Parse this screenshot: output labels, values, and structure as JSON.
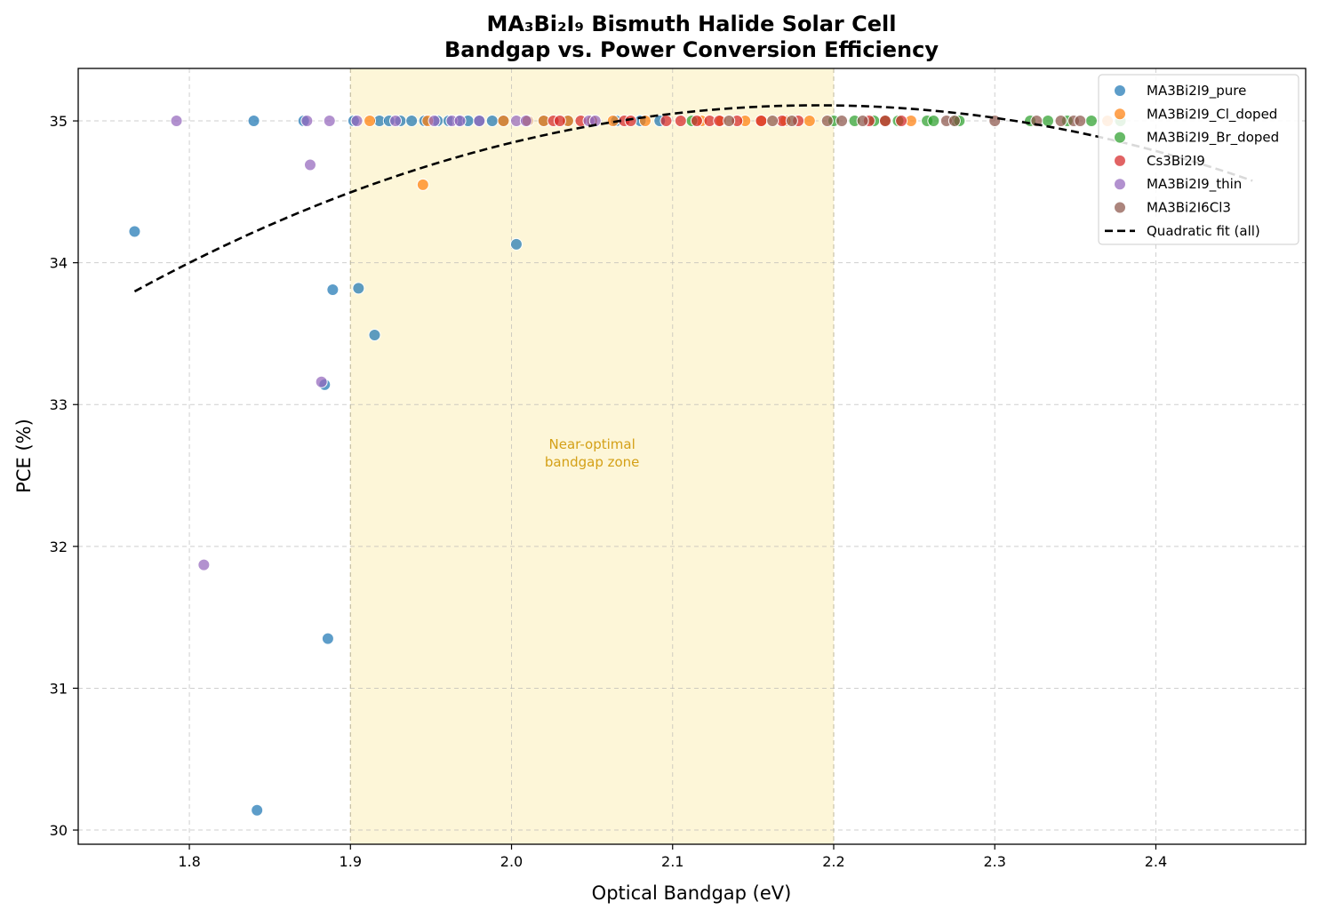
{
  "chart_data": {
    "type": "scatter",
    "title": "MA₃Bi₂I₉ Bismuth Halide Solar Cell",
    "subtitle": "Bandgap vs. Power Conversion Efficiency",
    "xlabel": "Optical Bandgap (eV)",
    "ylabel": "PCE (%)",
    "xlim": [
      1.731,
      2.493
    ],
    "ylim": [
      29.9,
      35.37
    ],
    "xticks": [
      1.8,
      1.9,
      2.0,
      2.1,
      2.2,
      2.3,
      2.4
    ],
    "xtick_labels": [
      "1.8",
      "1.9",
      "2.0",
      "2.1",
      "2.2",
      "2.3",
      "2.4"
    ],
    "yticks": [
      30,
      31,
      32,
      33,
      34,
      35
    ],
    "ytick_labels": [
      "30",
      "31",
      "32",
      "33",
      "34",
      "35"
    ],
    "grid": true,
    "legend_position": "top-right",
    "shaded_region": {
      "x_range": [
        1.9,
        2.2
      ],
      "color": "#fdf6d8",
      "label": "Near-optimal\nbandgap zone",
      "label_lines": [
        "Near-optimal",
        "bandgap zone"
      ],
      "label_at": [
        2.05,
        32.6
      ],
      "label_color": "#d4a017"
    },
    "series": [
      {
        "name": "MA3Bi2I9_pure",
        "color": "#1f77b4",
        "points": [
          [
            1.766,
            34.22
          ],
          [
            1.84,
            35.0
          ],
          [
            1.842,
            30.14
          ],
          [
            1.871,
            35.0
          ],
          [
            1.884,
            33.14
          ],
          [
            1.886,
            31.35
          ],
          [
            1.889,
            33.81
          ],
          [
            1.902,
            35.0
          ],
          [
            1.905,
            33.82
          ],
          [
            1.915,
            33.49
          ],
          [
            1.918,
            35.0
          ],
          [
            1.924,
            35.0
          ],
          [
            1.931,
            35.0
          ],
          [
            1.938,
            35.0
          ],
          [
            1.946,
            35.0
          ],
          [
            1.954,
            35.0
          ],
          [
            1.961,
            35.0
          ],
          [
            1.967,
            35.0
          ],
          [
            1.973,
            35.0
          ],
          [
            1.98,
            35.0
          ],
          [
            1.988,
            35.0
          ],
          [
            1.995,
            35.0
          ],
          [
            2.003,
            34.13
          ],
          [
            2.01,
            35.0
          ],
          [
            2.02,
            35.0
          ],
          [
            2.035,
            35.0
          ],
          [
            2.05,
            35.0
          ],
          [
            2.065,
            35.0
          ],
          [
            2.08,
            35.0
          ],
          [
            2.092,
            35.0
          ]
        ]
      },
      {
        "name": "MA3Bi2I9_Cl_doped",
        "color": "#ff7f0e",
        "points": [
          [
            1.912,
            35.0
          ],
          [
            1.945,
            34.55
          ],
          [
            1.948,
            35.0
          ],
          [
            1.995,
            35.0
          ],
          [
            2.01,
            35.0
          ],
          [
            2.02,
            35.0
          ],
          [
            2.035,
            35.0
          ],
          [
            2.05,
            35.0
          ],
          [
            2.063,
            35.0
          ],
          [
            2.083,
            35.0
          ],
          [
            2.118,
            35.0
          ],
          [
            2.13,
            35.0
          ],
          [
            2.145,
            35.0
          ],
          [
            2.155,
            35.0
          ],
          [
            2.17,
            35.0
          ],
          [
            2.185,
            35.0
          ],
          [
            2.248,
            35.0
          ],
          [
            2.37,
            35.0
          ]
        ]
      },
      {
        "name": "MA3Bi2I9_Br_doped",
        "color": "#2ca02c",
        "points": [
          [
            2.112,
            35.0
          ],
          [
            2.2,
            35.0
          ],
          [
            2.213,
            35.0
          ],
          [
            2.225,
            35.0
          ],
          [
            2.232,
            35.0
          ],
          [
            2.24,
            35.0
          ],
          [
            2.258,
            35.0
          ],
          [
            2.262,
            35.0
          ],
          [
            2.276,
            35.0
          ],
          [
            2.278,
            35.0
          ],
          [
            2.322,
            35.0
          ],
          [
            2.333,
            35.0
          ],
          [
            2.345,
            35.0
          ],
          [
            2.36,
            35.0
          ],
          [
            2.378,
            35.0
          ]
        ]
      },
      {
        "name": "Cs3Bi2I9",
        "color": "#d62728",
        "points": [
          [
            2.026,
            35.0
          ],
          [
            2.03,
            35.0
          ],
          [
            2.043,
            35.0
          ],
          [
            2.07,
            35.0
          ],
          [
            2.074,
            35.0
          ],
          [
            2.096,
            35.0
          ],
          [
            2.105,
            35.0
          ],
          [
            2.115,
            35.0
          ],
          [
            2.123,
            35.0
          ],
          [
            2.129,
            35.0
          ],
          [
            2.14,
            35.0
          ],
          [
            2.155,
            35.0
          ],
          [
            2.168,
            35.0
          ],
          [
            2.178,
            35.0
          ],
          [
            2.222,
            35.0
          ],
          [
            2.232,
            35.0
          ],
          [
            2.242,
            35.0
          ]
        ]
      },
      {
        "name": "MA3Bi2I9_thin",
        "color": "#9467bd",
        "points": [
          [
            1.792,
            35.0
          ],
          [
            1.809,
            31.87
          ],
          [
            1.873,
            35.0
          ],
          [
            1.875,
            34.69
          ],
          [
            1.882,
            33.16
          ],
          [
            1.887,
            35.0
          ],
          [
            1.904,
            35.0
          ],
          [
            1.928,
            35.0
          ],
          [
            1.952,
            35.0
          ],
          [
            1.963,
            35.0
          ],
          [
            1.968,
            35.0
          ],
          [
            1.98,
            35.0
          ],
          [
            2.003,
            35.0
          ],
          [
            2.009,
            35.0
          ],
          [
            2.048,
            35.0
          ],
          [
            2.052,
            35.0
          ]
        ]
      },
      {
        "name": "MA3Bi2I6Cl3",
        "color": "#8c564b",
        "points": [
          [
            2.135,
            35.0
          ],
          [
            2.162,
            35.0
          ],
          [
            2.174,
            35.0
          ],
          [
            2.196,
            35.0
          ],
          [
            2.205,
            35.0
          ],
          [
            2.218,
            35.0
          ],
          [
            2.27,
            35.0
          ],
          [
            2.275,
            35.0
          ],
          [
            2.3,
            35.0
          ],
          [
            2.326,
            35.0
          ],
          [
            2.341,
            35.0
          ],
          [
            2.349,
            35.0
          ],
          [
            2.353,
            35.0
          ]
        ]
      }
    ],
    "fit": {
      "name": "Quadratic fit (all)",
      "color": "#000000",
      "style": "dashed",
      "x_range": [
        1.766,
        2.46
      ],
      "vertex": [
        2.19,
        35.11
      ],
      "a": -7.3
    }
  }
}
